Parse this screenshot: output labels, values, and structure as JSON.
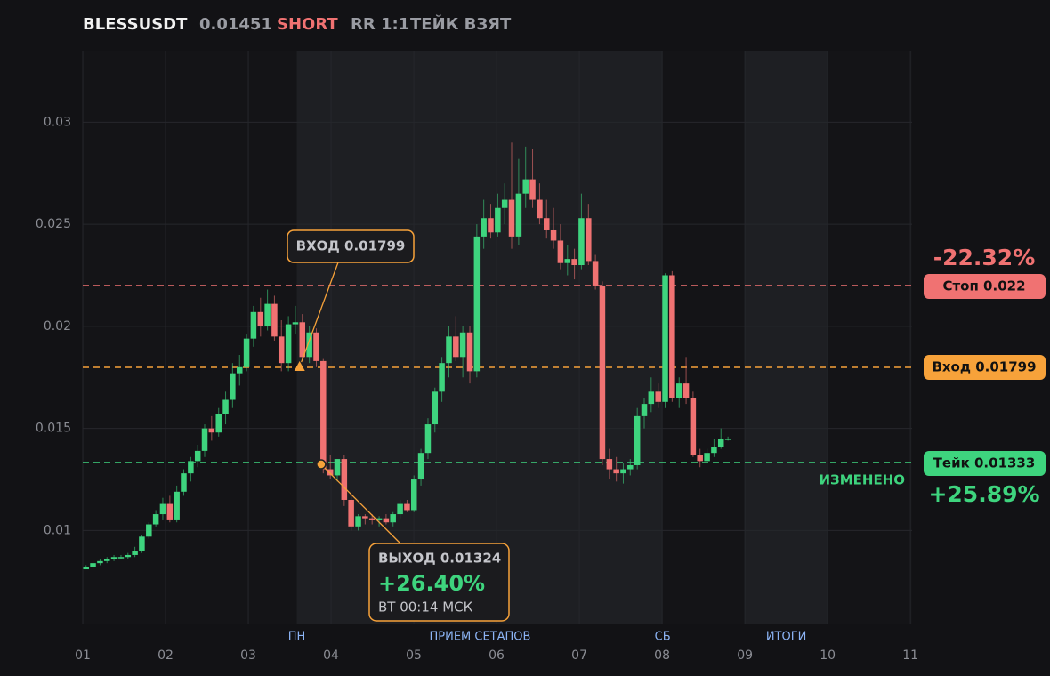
{
  "header": {
    "symbol": "BLESSUSDT",
    "price": "0.01451",
    "side": "SHORT",
    "rr": "RR 1:1",
    "status": "ТЕЙК ВЗЯТ"
  },
  "chart_data": {
    "type": "candlestick",
    "xlim": [
      1,
      11.02
    ],
    "ylim": [
      0.0054,
      0.0335
    ],
    "xticks": [
      {
        "value": 1,
        "label": "01"
      },
      {
        "value": 2,
        "label": "02"
      },
      {
        "value": 3,
        "label": "03"
      },
      {
        "value": 4,
        "label": "04"
      },
      {
        "value": 5,
        "label": "05"
      },
      {
        "value": 6,
        "label": "06"
      },
      {
        "value": 7,
        "label": "07"
      },
      {
        "value": 8,
        "label": "08"
      },
      {
        "value": 9,
        "label": "09"
      },
      {
        "value": 10,
        "label": "10"
      },
      {
        "value": 11,
        "label": "11"
      }
    ],
    "yticks": [
      0.01,
      0.015,
      0.02,
      0.025,
      0.03
    ],
    "grid": true,
    "up_color": "#3ed47e",
    "down_color": "#f07272",
    "bands": [
      {
        "start": 3.586,
        "end": 8.006
      },
      {
        "start": 9.0,
        "end": 10.0
      }
    ],
    "markers": [
      {
        "x": 3.586,
        "label": "ПН"
      },
      {
        "x": 5.8,
        "label": "ПРИЕМ СЕТАПОВ"
      },
      {
        "x": 8.006,
        "label": "СБ"
      },
      {
        "x": 9.5,
        "label": "ИТОГИ"
      }
    ],
    "x": [
      1.04,
      1.124,
      1.209,
      1.293,
      1.377,
      1.462,
      1.546,
      1.63,
      1.714,
      1.799,
      1.883,
      1.967,
      2.052,
      2.136,
      2.22,
      2.305,
      2.389,
      2.473,
      2.557,
      2.642,
      2.726,
      2.81,
      2.895,
      2.979,
      3.063,
      3.148,
      3.232,
      3.316,
      3.4,
      3.485,
      3.569,
      3.653,
      3.738,
      3.822,
      3.906,
      3.991,
      4.075,
      4.159,
      4.243,
      4.328,
      4.412,
      4.496,
      4.581,
      4.665,
      4.749,
      4.834,
      4.918,
      5.002,
      5.086,
      5.171,
      5.255,
      5.339,
      5.424,
      5.508,
      5.592,
      5.677,
      5.761,
      5.845,
      5.929,
      6.014,
      6.098,
      6.182,
      6.267,
      6.351,
      6.435,
      6.52,
      6.604,
      6.688,
      6.772,
      6.857,
      6.941,
      7.025,
      7.11,
      7.194,
      7.278,
      7.363,
      7.447,
      7.531,
      7.615,
      7.7,
      7.784,
      7.868,
      7.953,
      8.037,
      8.121,
      8.206,
      8.29,
      8.374,
      8.458,
      8.543,
      8.627,
      8.711,
      8.796
    ],
    "open": [
      0.0081,
      0.0082,
      0.0084,
      0.0085,
      0.0086,
      0.0087,
      0.0087,
      0.0088,
      0.009,
      0.0097,
      0.0103,
      0.0108,
      0.0113,
      0.0105,
      0.0119,
      0.0128,
      0.0134,
      0.0139,
      0.015,
      0.0148,
      0.0157,
      0.0164,
      0.0177,
      0.018,
      0.0194,
      0.0207,
      0.02,
      0.0211,
      0.0195,
      0.0182,
      0.0201,
      0.0202,
      0.0185,
      0.0197,
      0.0183,
      0.013,
      0.0127,
      0.0135,
      0.0115,
      0.0102,
      0.0107,
      0.0106,
      0.0105,
      0.0106,
      0.0104,
      0.0108,
      0.0113,
      0.011,
      0.0125,
      0.0138,
      0.0152,
      0.0168,
      0.0182,
      0.0195,
      0.0185,
      0.0197,
      0.0178,
      0.0244,
      0.0253,
      0.0246,
      0.0258,
      0.0262,
      0.0244,
      0.0265,
      0.0272,
      0.0262,
      0.0253,
      0.0247,
      0.0242,
      0.0231,
      0.0233,
      0.023,
      0.0253,
      0.0232,
      0.022,
      0.0135,
      0.013,
      0.0128,
      0.013,
      0.0132,
      0.0156,
      0.0162,
      0.0168,
      0.0163,
      0.0225,
      0.0165,
      0.0172,
      0.0165,
      0.0137,
      0.0134,
      0.0138,
      0.0141,
      0.0145
    ],
    "high": [
      0.0083,
      0.0085,
      0.0086,
      0.0087,
      0.0088,
      0.0088,
      0.0089,
      0.0092,
      0.0098,
      0.0104,
      0.011,
      0.0116,
      0.0117,
      0.0122,
      0.013,
      0.0136,
      0.0142,
      0.0152,
      0.0156,
      0.016,
      0.0168,
      0.0182,
      0.0186,
      0.0196,
      0.021,
      0.0214,
      0.0218,
      0.0215,
      0.0203,
      0.0205,
      0.021,
      0.0206,
      0.02,
      0.0199,
      0.0184,
      0.0137,
      0.0135,
      0.0137,
      0.0118,
      0.0108,
      0.0108,
      0.0108,
      0.0107,
      0.0108,
      0.0109,
      0.0115,
      0.0115,
      0.0127,
      0.014,
      0.0155,
      0.017,
      0.0185,
      0.02,
      0.0205,
      0.02,
      0.02,
      0.025,
      0.0262,
      0.026,
      0.0265,
      0.027,
      0.029,
      0.0282,
      0.0288,
      0.0287,
      0.027,
      0.0262,
      0.0258,
      0.025,
      0.024,
      0.0238,
      0.0265,
      0.026,
      0.0235,
      0.0222,
      0.014,
      0.0136,
      0.0133,
      0.0135,
      0.016,
      0.0165,
      0.0175,
      0.0172,
      0.0226,
      0.0227,
      0.0175,
      0.0185,
      0.0168,
      0.014,
      0.014,
      0.0145,
      0.015,
      0.0146
    ],
    "low": [
      0.0081,
      0.0081,
      0.0083,
      0.0084,
      0.0085,
      0.0086,
      0.0086,
      0.0087,
      0.0089,
      0.0096,
      0.0102,
      0.0105,
      0.0104,
      0.0104,
      0.0117,
      0.0124,
      0.0131,
      0.0136,
      0.0144,
      0.0146,
      0.0152,
      0.016,
      0.0171,
      0.0178,
      0.019,
      0.0195,
      0.0198,
      0.0193,
      0.0178,
      0.0178,
      0.0196,
      0.0183,
      0.0182,
      0.018,
      0.0128,
      0.0125,
      0.0124,
      0.0112,
      0.01,
      0.01,
      0.0103,
      0.0103,
      0.0102,
      0.0103,
      0.0102,
      0.0106,
      0.0109,
      0.0109,
      0.0122,
      0.0135,
      0.0148,
      0.0163,
      0.0175,
      0.0183,
      0.0175,
      0.0172,
      0.0175,
      0.0238,
      0.0243,
      0.0244,
      0.025,
      0.0238,
      0.024,
      0.0258,
      0.0258,
      0.025,
      0.0243,
      0.0238,
      0.0228,
      0.0225,
      0.0223,
      0.0228,
      0.023,
      0.0218,
      0.0132,
      0.0125,
      0.0124,
      0.0123,
      0.0127,
      0.013,
      0.015,
      0.0158,
      0.016,
      0.016,
      0.0163,
      0.016,
      0.0162,
      0.0136,
      0.0131,
      0.0133,
      0.0136,
      0.014,
      0.0144
    ],
    "close": [
      0.0082,
      0.0084,
      0.0085,
      0.0086,
      0.0087,
      0.0087,
      0.0088,
      0.009,
      0.0097,
      0.0103,
      0.0108,
      0.0113,
      0.0105,
      0.0119,
      0.0128,
      0.0134,
      0.0139,
      0.015,
      0.0148,
      0.0157,
      0.0164,
      0.0177,
      0.018,
      0.0194,
      0.0207,
      0.02,
      0.0211,
      0.0195,
      0.0182,
      0.0201,
      0.0202,
      0.0185,
      0.0197,
      0.0183,
      0.013,
      0.0127,
      0.0135,
      0.0115,
      0.0102,
      0.0107,
      0.0106,
      0.0105,
      0.0106,
      0.0104,
      0.0108,
      0.0113,
      0.011,
      0.0125,
      0.0138,
      0.0152,
      0.0168,
      0.0182,
      0.0195,
      0.0185,
      0.0197,
      0.0178,
      0.0244,
      0.0253,
      0.0246,
      0.0258,
      0.0262,
      0.0244,
      0.0265,
      0.0272,
      0.0262,
      0.0253,
      0.0247,
      0.0242,
      0.0231,
      0.0233,
      0.023,
      0.0253,
      0.0232,
      0.022,
      0.0135,
      0.013,
      0.0128,
      0.013,
      0.0132,
      0.0156,
      0.0162,
      0.0168,
      0.0163,
      0.0225,
      0.0165,
      0.0172,
      0.0165,
      0.0137,
      0.0134,
      0.0138,
      0.0141,
      0.0145,
      0.0145
    ],
    "levels": [
      {
        "label": "Стоп 0.022",
        "value": 0.022,
        "color": "#f07272",
        "change": "-22.32%"
      },
      {
        "label": "Вход 0.01799",
        "value": 0.01799,
        "color": "#f7a23a"
      },
      {
        "label": "Тейк 0.01333",
        "value": 0.01333,
        "color": "#3ed47e",
        "change": "+25.89%",
        "note": "ИЗМЕНЕНО"
      }
    ],
    "entry": {
      "x": 3.62,
      "y": 0.01799,
      "label": "ВХОД 0.01799"
    },
    "exit": {
      "x": 3.88,
      "y": 0.01324,
      "label": "ВЫХОД 0.01324",
      "result": "+26.40%",
      "time": "ВТ 00:14 МСК"
    }
  }
}
